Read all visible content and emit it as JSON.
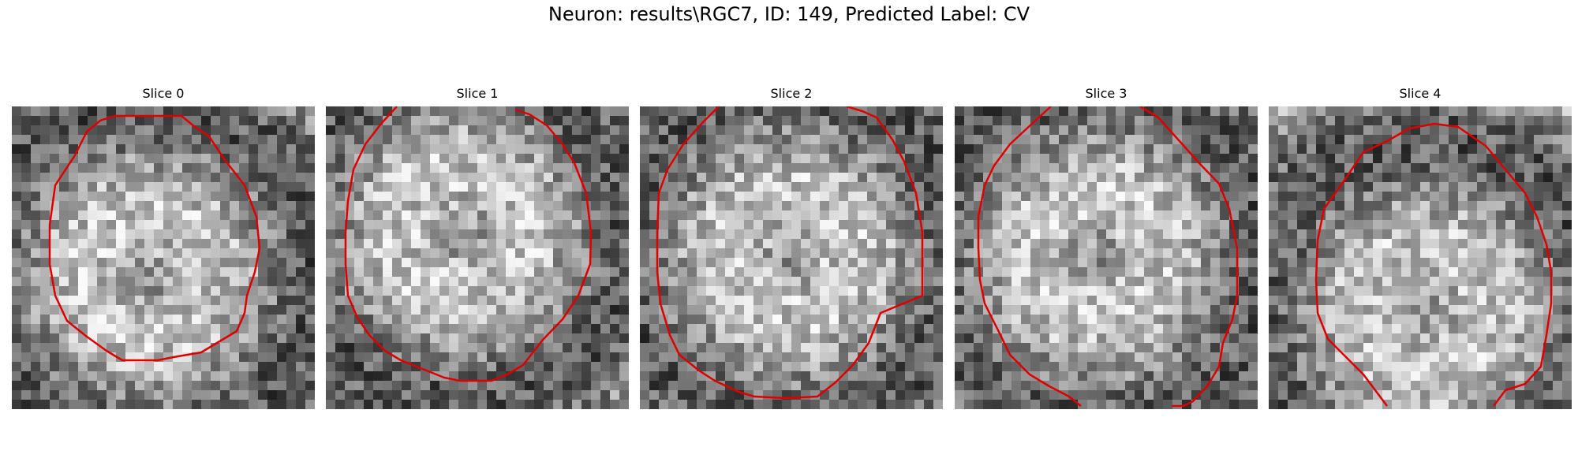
{
  "figure": {
    "title": "Neuron: results\\RGC7, ID: 149, Predicted Label: CV"
  },
  "colors": {
    "contour": "#e00000",
    "background": "#ffffff"
  },
  "panels": [
    {
      "title": "Slice 0",
      "contour": "closed ring"
    },
    {
      "title": "Slice 1",
      "contour": "ring open at top"
    },
    {
      "title": "Slice 2",
      "contour": "ring open at top"
    },
    {
      "title": "Slice 3",
      "contour": "ring open at top and bottom"
    },
    {
      "title": "Slice 4",
      "contour": "ring open at bottom"
    }
  ]
}
